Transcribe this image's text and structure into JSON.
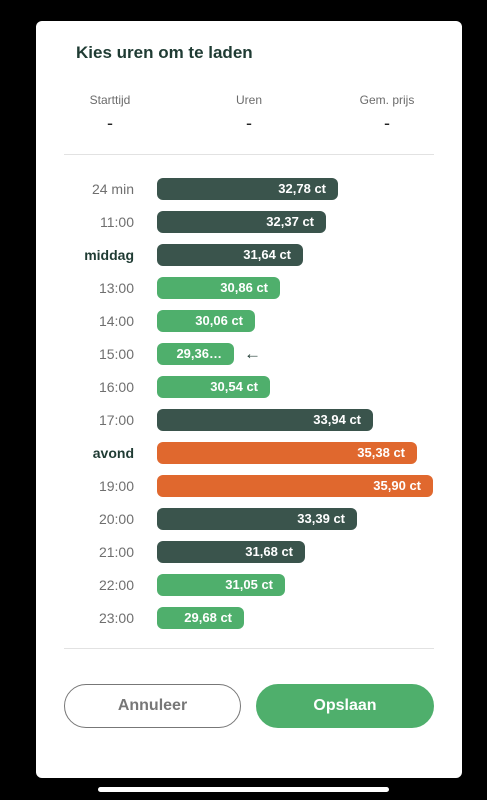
{
  "modal": {
    "title": "Kies uren om te laden",
    "stats": [
      {
        "label": "Starttijd",
        "value": "-"
      },
      {
        "label": "Uren",
        "value": "-"
      },
      {
        "label": "Gem. prijs",
        "value": "-"
      }
    ],
    "rows": [
      {
        "time": "24 min",
        "price_label": "32,78 ct",
        "price": 32.78,
        "color": "dark",
        "bold": false
      },
      {
        "time": "11:00",
        "price_label": "32,37 ct",
        "price": 32.37,
        "color": "dark",
        "bold": false
      },
      {
        "time": "middag",
        "price_label": "31,64 ct",
        "price": 31.64,
        "color": "dark",
        "bold": true
      },
      {
        "time": "13:00",
        "price_label": "30,86 ct",
        "price": 30.86,
        "color": "green",
        "bold": false
      },
      {
        "time": "14:00",
        "price_label": "30,06 ct",
        "price": 30.06,
        "color": "green",
        "bold": false
      },
      {
        "time": "15:00",
        "price_label": "29,36…",
        "price": 29.36,
        "color": "green",
        "bold": false,
        "current": true
      },
      {
        "time": "16:00",
        "price_label": "30,54 ct",
        "price": 30.54,
        "color": "green",
        "bold": false
      },
      {
        "time": "17:00",
        "price_label": "33,94 ct",
        "price": 33.94,
        "color": "dark",
        "bold": false
      },
      {
        "time": "avond",
        "price_label": "35,38 ct",
        "price": 35.38,
        "color": "orange",
        "bold": true
      },
      {
        "time": "19:00",
        "price_label": "35,90 ct",
        "price": 35.9,
        "color": "orange",
        "bold": false
      },
      {
        "time": "20:00",
        "price_label": "33,39 ct",
        "price": 33.39,
        "color": "dark",
        "bold": false
      },
      {
        "time": "21:00",
        "price_label": "31,68 ct",
        "price": 31.68,
        "color": "dark",
        "bold": false
      },
      {
        "time": "22:00",
        "price_label": "31,05 ct",
        "price": 31.05,
        "color": "green",
        "bold": false
      },
      {
        "time": "23:00",
        "price_label": "29,68 ct",
        "price": 29.68,
        "color": "green",
        "bold": false
      }
    ],
    "current_marker": "←",
    "buttons": {
      "cancel": "Annuleer",
      "save": "Opslaan"
    }
  },
  "colors": {
    "dark": "#3a544c",
    "green": "#4faf6c",
    "orange": "#e0682e"
  }
}
